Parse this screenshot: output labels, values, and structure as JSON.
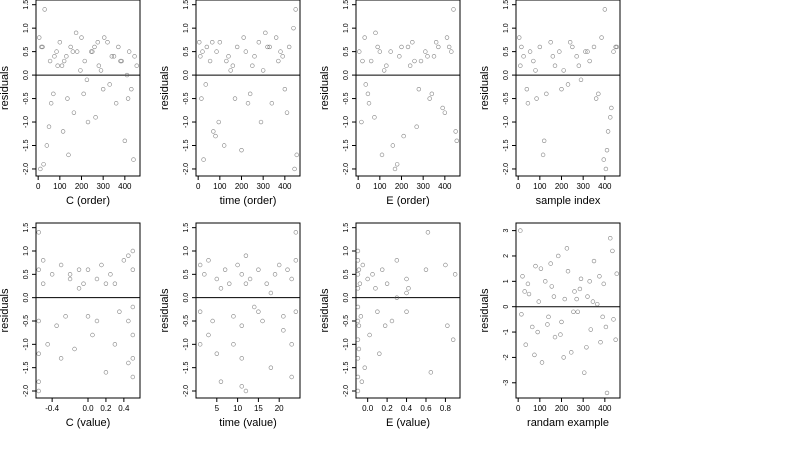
{
  "chart_data": [
    {
      "type": "scatter",
      "xlabel": "C (order)",
      "ylabel": "residuals",
      "xlim": [
        -10,
        470
      ],
      "ylim": [
        -2.15,
        1.6
      ],
      "xticks": [
        0,
        100,
        200,
        300,
        400
      ],
      "xtick_labels": [
        "0",
        "100",
        "200",
        "300",
        "400"
      ],
      "yticks": [
        -2.0,
        -1.5,
        -1.0,
        -0.5,
        0.0,
        0.5,
        1.0,
        1.5
      ],
      "ytick_labels": [
        "-2.0",
        "-1.5",
        "-1.0",
        "-0.5",
        "0.0",
        "0.5",
        "1.0",
        "1.5"
      ],
      "hline": 0,
      "series": [
        {
          "x": [
            5,
            20,
            40,
            55,
            70,
            85,
            100,
            115,
            130,
            150,
            165,
            180,
            200,
            215,
            230,
            245,
            260,
            280,
            300,
            320,
            340,
            360,
            380,
            400,
            420,
            440,
            455,
            10,
            30,
            60,
            90,
            120,
            140,
            175,
            210,
            250,
            290,
            330,
            370,
            410,
            445,
            25,
            75,
            135,
            195,
            265,
            305,
            385,
            430,
            15,
            50,
            110,
            160,
            225,
            275,
            350,
            415
          ],
          "y": [
            0.8,
            0.6,
            -1.5,
            0.3,
            -0.4,
            0.5,
            0.7,
            -1.2,
            0.4,
            0.6,
            -0.8,
            0.5,
            0.8,
            0.3,
            -1.0,
            0.5,
            0.6,
            0.2,
            -0.3,
            0.7,
            0.4,
            -0.6,
            0.3,
            -1.4,
            0.5,
            -1.8,
            0.2,
            -2.0,
            1.4,
            -0.6,
            0.2,
            0.3,
            -1.7,
            0.9,
            -0.4,
            0.5,
            0.1,
            -0.2,
            0.6,
            0.0,
            0.4,
            -1.9,
            0.4,
            -0.5,
            0.1,
            -0.9,
            0.8,
            0.3,
            -0.3,
            0.6,
            -1.1,
            0.2,
            0.5,
            -0.1,
            0.7,
            0.4,
            -0.5
          ]
        }
      ]
    },
    {
      "type": "scatter",
      "xlabel": "time (order)",
      "ylabel": "residuals",
      "xlim": [
        -10,
        470
      ],
      "ylim": [
        -2.15,
        1.6
      ],
      "xticks": [
        0,
        100,
        200,
        300,
        400
      ],
      "xtick_labels": [
        "0",
        "100",
        "200",
        "300",
        "400"
      ],
      "yticks": [
        -2.0,
        -1.5,
        -1.0,
        -0.5,
        0.0,
        0.5,
        1.0,
        1.5
      ],
      "ytick_labels": [
        "-2.0",
        "-1.5",
        "-1.0",
        "-0.5",
        "0.0",
        "0.5",
        "1.0",
        "1.5"
      ],
      "hline": 0,
      "series": [
        {
          "x": [
            5,
            15,
            25,
            40,
            55,
            70,
            85,
            100,
            120,
            140,
            160,
            180,
            200,
            220,
            240,
            260,
            280,
            300,
            320,
            340,
            360,
            380,
            400,
            420,
            440,
            455,
            10,
            35,
            65,
            95,
            130,
            170,
            210,
            250,
            290,
            330,
            370,
            410,
            450,
            20,
            80,
            150,
            230,
            310,
            390,
            445
          ],
          "y": [
            0.7,
            -0.5,
            -1.8,
            0.6,
            0.3,
            -1.2,
            0.5,
            0.7,
            -1.5,
            0.4,
            0.2,
            0.6,
            -1.6,
            0.5,
            -0.4,
            0.4,
            0.7,
            0.1,
            0.6,
            -0.6,
            0.8,
            0.5,
            -0.3,
            0.6,
            1.0,
            -1.7,
            0.4,
            -0.2,
            0.7,
            -1.0,
            0.3,
            -0.5,
            0.8,
            0.2,
            -1.0,
            0.6,
            0.3,
            -0.8,
            1.4,
            0.5,
            -1.3,
            0.1,
            -0.6,
            0.9,
            0.4,
            -2.0
          ]
        }
      ]
    },
    {
      "type": "scatter",
      "xlabel": "E (order)",
      "ylabel": "residuals",
      "xlim": [
        -10,
        470
      ],
      "ylim": [
        -2.15,
        1.6
      ],
      "xticks": [
        0,
        100,
        200,
        300,
        400
      ],
      "xtick_labels": [
        "0",
        "100",
        "200",
        "300",
        "400"
      ],
      "yticks": [
        -2.0,
        -1.5,
        -1.0,
        -0.5,
        0.0,
        0.5,
        1.0,
        1.5
      ],
      "ytick_labels": [
        "-2.0",
        "-1.5",
        "-1.0",
        "-0.5",
        "0.0",
        "0.5",
        "1.0",
        "1.5"
      ],
      "hline": 0,
      "series": [
        {
          "x": [
            5,
            15,
            30,
            45,
            60,
            75,
            90,
            110,
            130,
            150,
            170,
            190,
            210,
            230,
            250,
            270,
            290,
            310,
            330,
            350,
            370,
            390,
            410,
            430,
            450,
            20,
            50,
            80,
            120,
            160,
            200,
            240,
            280,
            320,
            360,
            400,
            440,
            35,
            100,
            180,
            260,
            340,
            420,
            455
          ],
          "y": [
            0.5,
            -1.0,
            0.8,
            -0.4,
            0.3,
            -0.9,
            0.6,
            -1.7,
            0.2,
            0.5,
            -2.0,
            0.4,
            -1.3,
            0.6,
            0.7,
            -1.1,
            0.3,
            0.5,
            -0.5,
            0.4,
            0.6,
            -0.7,
            0.8,
            0.5,
            -1.2,
            0.3,
            -0.6,
            0.9,
            0.1,
            -1.5,
            0.6,
            0.2,
            -0.3,
            0.4,
            0.7,
            -0.8,
            1.4,
            -0.2,
            0.5,
            -1.9,
            0.3,
            -0.4,
            0.6,
            -1.4
          ]
        }
      ]
    },
    {
      "type": "scatter",
      "xlabel": "sample index",
      "ylabel": "residuals",
      "xlim": [
        -10,
        470
      ],
      "ylim": [
        -2.15,
        1.6
      ],
      "xticks": [
        0,
        100,
        200,
        300,
        400
      ],
      "xtick_labels": [
        "0",
        "100",
        "200",
        "300",
        "400"
      ],
      "yticks": [
        -2.0,
        -1.5,
        -1.0,
        -0.5,
        0.0,
        0.5,
        1.0,
        1.5
      ],
      "ytick_labels": [
        "-2.0",
        "-1.5",
        "-1.0",
        "-0.5",
        "0.0",
        "0.5",
        "1.0",
        "1.5"
      ],
      "hline": 0,
      "series": [
        {
          "x": [
            5,
            15,
            25,
            40,
            55,
            70,
            85,
            100,
            115,
            130,
            150,
            170,
            190,
            210,
            230,
            250,
            270,
            290,
            310,
            330,
            350,
            370,
            385,
            395,
            405,
            415,
            425,
            440,
            455,
            10,
            45,
            80,
            120,
            160,
            200,
            240,
            280,
            320,
            360,
            400,
            410,
            430,
            450
          ],
          "y": [
            0.8,
            0.6,
            0.4,
            -0.3,
            0.5,
            0.3,
            -0.5,
            0.6,
            -1.7,
            -0.4,
            0.7,
            0.2,
            0.5,
            0.1,
            -0.2,
            0.6,
            0.4,
            -0.1,
            0.5,
            0.3,
            0.6,
            -0.4,
            0.8,
            -1.8,
            -2.0,
            -1.2,
            -0.9,
            0.5,
            0.6,
            0.2,
            -0.6,
            0.1,
            -1.4,
            0.4,
            -0.3,
            0.7,
            0.2,
            0.5,
            -0.5,
            1.4,
            -1.6,
            -0.7,
            0.6
          ]
        }
      ]
    },
    {
      "type": "scatter",
      "xlabel": "C (value)",
      "ylabel": "residuals",
      "xlim": [
        -0.58,
        0.58
      ],
      "ylim": [
        -2.15,
        1.6
      ],
      "xticks": [
        -0.4,
        0.0,
        0.2,
        0.4
      ],
      "xtick_labels": [
        "-0.4",
        "0.0",
        "0.2",
        "0.4"
      ],
      "yticks": [
        -2.0,
        -1.5,
        -1.0,
        -0.5,
        0.0,
        0.5,
        1.0,
        1.5
      ],
      "ytick_labels": [
        "-2.0",
        "-1.5",
        "-1.0",
        "-0.5",
        "0.0",
        "0.5",
        "1.0",
        "1.5"
      ],
      "hline": 0,
      "series": [
        {
          "x": [
            -0.55,
            -0.55,
            -0.55,
            -0.55,
            -0.55,
            -0.55,
            -0.5,
            -0.45,
            -0.4,
            -0.35,
            -0.3,
            -0.25,
            -0.2,
            -0.15,
            -0.1,
            -0.05,
            0.0,
            0.05,
            0.1,
            0.15,
            0.2,
            0.25,
            0.3,
            0.35,
            0.4,
            0.45,
            0.45,
            0.45,
            0.5,
            0.5,
            0.5,
            0.5,
            0.5,
            0.5,
            -0.5,
            -0.3,
            -0.1,
            0.1,
            0.3,
            -0.2,
            0.0,
            0.2
          ],
          "y": [
            1.4,
            0.6,
            -0.5,
            -1.2,
            -1.8,
            -2.0,
            0.8,
            -1.0,
            0.5,
            -0.6,
            0.7,
            -0.4,
            0.5,
            -1.1,
            0.6,
            0.3,
            0.6,
            -0.8,
            0.4,
            0.7,
            -1.6,
            0.5,
            0.3,
            -0.3,
            0.8,
            0.9,
            -0.5,
            -1.4,
            1.0,
            0.6,
            -0.2,
            -0.8,
            -1.3,
            -1.7,
            0.3,
            -1.3,
            0.2,
            -0.5,
            -1.0,
            0.4,
            -0.4,
            0.3
          ]
        }
      ]
    },
    {
      "type": "scatter",
      "xlabel": "time (value)",
      "ylabel": "residuals",
      "xlim": [
        0,
        25
      ],
      "ylim": [
        -2.15,
        1.6
      ],
      "xticks": [
        5,
        10,
        15,
        20
      ],
      "xtick_labels": [
        "5",
        "10",
        "15",
        "20"
      ],
      "yticks": [
        -2.0,
        -1.5,
        -1.0,
        -0.5,
        0.0,
        0.5,
        1.0,
        1.5
      ],
      "ytick_labels": [
        "-2.0",
        "-1.5",
        "-1.0",
        "-0.5",
        "0.0",
        "0.5",
        "1.0",
        "1.5"
      ],
      "hline": 0,
      "series": [
        {
          "x": [
            1,
            1,
            1,
            2,
            3,
            4,
            5,
            5,
            6,
            7,
            8,
            9,
            10,
            11,
            11,
            11,
            11,
            12,
            12,
            13,
            14,
            15,
            16,
            17,
            18,
            19,
            20,
            21,
            22,
            23,
            23,
            23,
            24,
            24,
            24,
            3,
            6,
            9,
            12,
            15,
            18,
            21
          ],
          "y": [
            0.7,
            -0.3,
            -1.0,
            0.5,
            0.8,
            -0.5,
            -1.2,
            0.4,
            -1.8,
            0.6,
            0.3,
            -0.4,
            0.7,
            0.5,
            -0.6,
            -1.3,
            -1.9,
            0.9,
            -2.0,
            0.4,
            -0.2,
            0.6,
            -0.5,
            0.3,
            -1.5,
            0.5,
            0.7,
            -0.4,
            0.6,
            0.4,
            -1.0,
            -1.7,
            1.4,
            0.8,
            -0.3,
            -0.8,
            0.2,
            -1.0,
            0.3,
            -0.3,
            0.1,
            -0.7
          ]
        }
      ]
    },
    {
      "type": "scatter",
      "xlabel": "E (value)",
      "ylabel": "residuals",
      "xlim": [
        -0.12,
        0.95
      ],
      "ylim": [
        -2.15,
        1.6
      ],
      "xticks": [
        0.0,
        0.2,
        0.4,
        0.6,
        0.8
      ],
      "xtick_labels": [
        "0.0",
        "0.2",
        "0.4",
        "0.6",
        "0.8"
      ],
      "yticks": [
        -2.0,
        -1.5,
        -1.0,
        -0.5,
        0.0,
        0.5,
        1.0,
        1.5
      ],
      "ytick_labels": [
        "-2.0",
        "-1.5",
        "-1.0",
        "-0.5",
        "0.0",
        "0.5",
        "1.0",
        "1.5"
      ],
      "hline": 0,
      "series": [
        {
          "x": [
            -0.1,
            -0.1,
            -0.1,
            -0.1,
            -0.1,
            -0.1,
            -0.1,
            -0.1,
            -0.1,
            -0.1,
            -0.09,
            -0.09,
            -0.09,
            -0.08,
            -0.07,
            -0.05,
            -0.03,
            0.0,
            0.02,
            0.05,
            0.1,
            0.12,
            0.15,
            0.2,
            0.25,
            0.3,
            0.4,
            0.4,
            0.4,
            0.42,
            0.6,
            0.62,
            0.65,
            0.8,
            0.82,
            0.88,
            0.9,
            -0.06,
            0.08,
            0.18,
            0.3
          ],
          "y": [
            1.0,
            0.8,
            0.5,
            0.2,
            -0.2,
            -0.5,
            -0.9,
            -1.3,
            -1.7,
            -2.0,
            0.6,
            -0.6,
            -1.1,
            0.3,
            -0.4,
            0.7,
            -1.5,
            0.4,
            -0.8,
            0.5,
            -0.3,
            -1.2,
            0.6,
            0.3,
            -0.5,
            0.8,
            0.4,
            0.1,
            -0.3,
            0.2,
            0.6,
            1.4,
            -1.6,
            0.7,
            -0.6,
            -0.9,
            0.5,
            -1.8,
            0.2,
            -0.6,
            0.0
          ]
        }
      ]
    },
    {
      "type": "scatter",
      "xlabel": "randam example",
      "ylabel": "residuals",
      "xlim": [
        -10,
        470
      ],
      "ylim": [
        -3.6,
        3.3
      ],
      "xticks": [
        0,
        100,
        200,
        300,
        400
      ],
      "xtick_labels": [
        "0",
        "100",
        "200",
        "300",
        "400"
      ],
      "yticks": [
        -3,
        -2,
        -1,
        0,
        1,
        2,
        3
      ],
      "ytick_labels": [
        "-3",
        "-2",
        "-1",
        "0",
        "1",
        "2",
        "3"
      ],
      "hline": 0,
      "series": [
        {
          "x": [
            10,
            20,
            35,
            50,
            65,
            80,
            95,
            110,
            125,
            140,
            155,
            170,
            185,
            200,
            215,
            230,
            245,
            260,
            275,
            290,
            305,
            320,
            335,
            350,
            365,
            380,
            395,
            410,
            425,
            440,
            455,
            15,
            45,
            75,
            105,
            135,
            165,
            195,
            225,
            255,
            285,
            315,
            345,
            375,
            405,
            435,
            30,
            90,
            150,
            210,
            270,
            330,
            390,
            450
          ],
          "y": [
            3.0,
            1.2,
            -1.5,
            0.5,
            -0.8,
            1.6,
            0.2,
            -2.2,
            1.0,
            -0.4,
            0.8,
            -1.2,
            2.0,
            -0.6,
            0.3,
            1.4,
            -1.8,
            0.6,
            -0.2,
            1.1,
            -2.6,
            0.4,
            -0.9,
            1.8,
            0.1,
            -1.4,
            0.9,
            -3.4,
            2.7,
            -0.5,
            1.3,
            -0.3,
            0.9,
            -1.9,
            1.5,
            -0.7,
            0.4,
            -1.1,
            2.3,
            -0.2,
            0.7,
            -1.6,
            0.2,
            1.2,
            -0.8,
            2.2,
            0.6,
            -1.0,
            1.7,
            -2.0,
            0.3,
            1.0,
            -0.4,
            -1.3
          ]
        }
      ]
    }
  ]
}
